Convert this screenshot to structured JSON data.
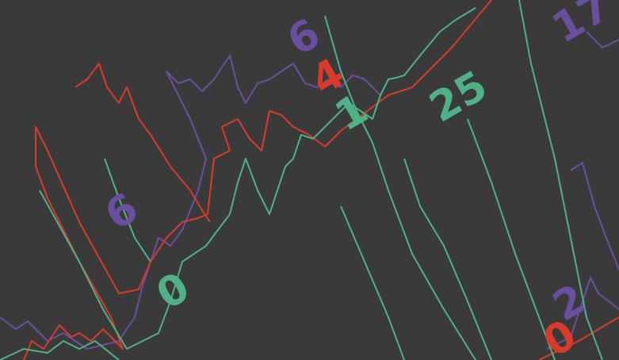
{
  "labels": [
    {
      "text": "6",
      "color": "#6a4fa0"
    },
    {
      "text": "4",
      "color": "#d93a2b"
    },
    {
      "text": "1",
      "color": "#4fb286"
    },
    {
      "text": "25",
      "color": "#4fb286"
    },
    {
      "text": "17",
      "color": "#6a4fa0"
    },
    {
      "text": "6",
      "color": "#6a4fa0"
    },
    {
      "text": "0",
      "color": "#4fb286"
    },
    {
      "text": "2",
      "color": "#6a4fa0"
    },
    {
      "text": "0",
      "color": "#d93a2b"
    }
  ]
}
